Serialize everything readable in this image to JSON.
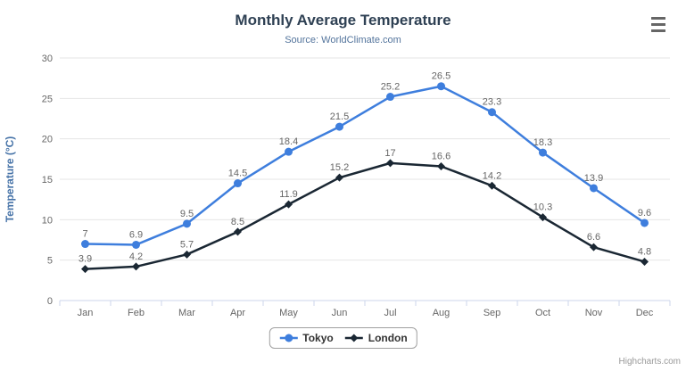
{
  "chart": {
    "title": "Monthly Average Temperature",
    "subtitle": "Source: WorldClimate.com",
    "credits": "Highcharts.com",
    "context_menu_icon": "hamburger-menu-icon",
    "colors": {
      "tokyo_series": "#3e7edd",
      "london_series": "#1a2733",
      "axis_title": "#4572a7",
      "axis_labels": "#666666",
      "gridline": "#e6e6e6",
      "axis_line": "#ccd6eb",
      "data_label": "#666666"
    }
  },
  "chart_data": {
    "type": "line",
    "title": "Monthly Average Temperature",
    "subtitle": "Source: WorldClimate.com",
    "xlabel": "",
    "ylabel": "Temperature (°C)",
    "ylim": [
      0,
      30
    ],
    "ytick_step": 5,
    "grid": true,
    "legend_position": "bottom",
    "data_labels": true,
    "categories": [
      "Jan",
      "Feb",
      "Mar",
      "Apr",
      "May",
      "Jun",
      "Jul",
      "Aug",
      "Sep",
      "Oct",
      "Nov",
      "Dec"
    ],
    "series": [
      {
        "name": "Tokyo",
        "color": "#3e7edd",
        "marker": "circle",
        "values": [
          7,
          6.9,
          9.5,
          14.5,
          18.4,
          21.5,
          25.2,
          26.5,
          23.3,
          18.3,
          13.9,
          9.6
        ]
      },
      {
        "name": "London",
        "color": "#1a2733",
        "marker": "diamond",
        "values": [
          3.9,
          4.2,
          5.7,
          8.5,
          11.9,
          15.2,
          17,
          16.6,
          14.2,
          10.3,
          6.6,
          4.8
        ]
      }
    ]
  }
}
